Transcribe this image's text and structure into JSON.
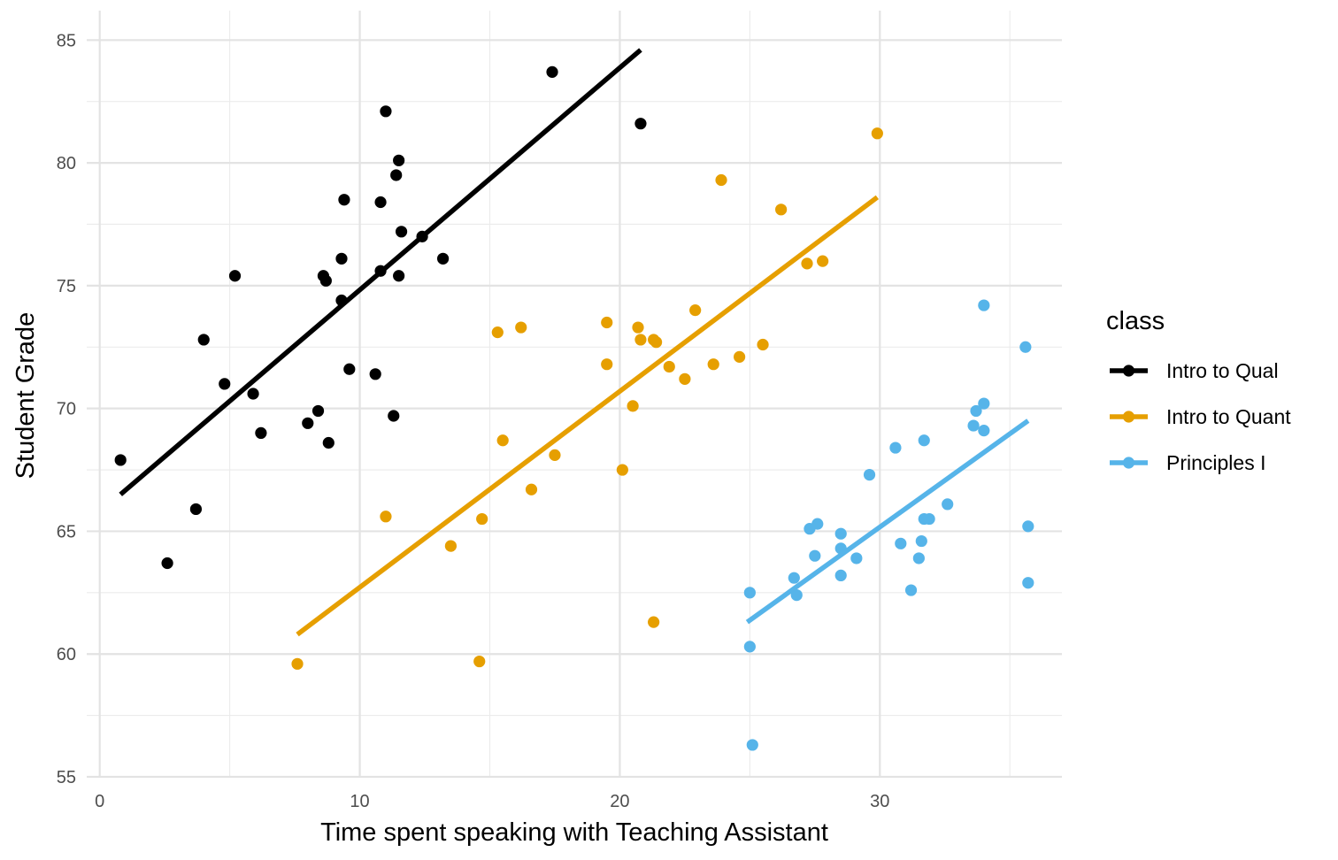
{
  "chart_data": {
    "type": "scatter",
    "title": "",
    "xlabel": "Time spent speaking with Teaching Assistant",
    "ylabel": "Student Grade",
    "xlim": [
      -0.5,
      37.0
    ],
    "ylim": [
      55,
      86.2
    ],
    "x_ticks": [
      0,
      10,
      20,
      30
    ],
    "x_tick_labels": [
      "0",
      "10",
      "20",
      "30"
    ],
    "y_ticks": [
      55,
      60,
      65,
      70,
      75,
      80,
      85
    ],
    "y_tick_labels": [
      "55",
      "60",
      "65",
      "70",
      "75",
      "80",
      "85"
    ],
    "grid": true,
    "legend": {
      "title": "class",
      "position": "right"
    },
    "series": [
      {
        "name": "Intro to Qual",
        "color": "#000000",
        "points": [
          [
            0.8,
            67.9
          ],
          [
            2.6,
            63.7
          ],
          [
            3.7,
            65.9
          ],
          [
            4.0,
            72.8
          ],
          [
            4.8,
            71.0
          ],
          [
            5.2,
            75.4
          ],
          [
            5.9,
            70.6
          ],
          [
            6.2,
            69.0
          ],
          [
            8.0,
            69.4
          ],
          [
            8.4,
            69.9
          ],
          [
            8.6,
            75.4
          ],
          [
            8.7,
            75.2
          ],
          [
            8.8,
            68.6
          ],
          [
            9.3,
            74.4
          ],
          [
            9.3,
            76.1
          ],
          [
            9.4,
            78.5
          ],
          [
            9.6,
            71.6
          ],
          [
            10.6,
            71.4
          ],
          [
            10.8,
            78.4
          ],
          [
            10.8,
            75.6
          ],
          [
            11.0,
            82.1
          ],
          [
            11.3,
            69.7
          ],
          [
            11.4,
            79.5
          ],
          [
            11.5,
            80.1
          ],
          [
            11.5,
            75.4
          ],
          [
            11.6,
            77.2
          ],
          [
            12.4,
            77.0
          ],
          [
            13.2,
            76.1
          ],
          [
            17.4,
            83.7
          ],
          [
            20.8,
            81.6
          ]
        ],
        "fit": [
          [
            0.8,
            66.5
          ],
          [
            20.8,
            84.6
          ]
        ]
      },
      {
        "name": "Intro to Quant",
        "color": "#E69F00",
        "points": [
          [
            7.6,
            59.6
          ],
          [
            11.0,
            65.6
          ],
          [
            13.5,
            64.4
          ],
          [
            14.6,
            59.7
          ],
          [
            14.7,
            65.5
          ],
          [
            15.3,
            73.1
          ],
          [
            15.5,
            68.7
          ],
          [
            16.2,
            73.3
          ],
          [
            16.6,
            66.7
          ],
          [
            17.5,
            68.1
          ],
          [
            19.5,
            73.5
          ],
          [
            19.5,
            71.8
          ],
          [
            20.1,
            67.5
          ],
          [
            20.5,
            70.1
          ],
          [
            20.7,
            73.3
          ],
          [
            20.8,
            72.8
          ],
          [
            21.3,
            72.8
          ],
          [
            21.4,
            72.7
          ],
          [
            21.3,
            61.3
          ],
          [
            21.9,
            71.7
          ],
          [
            22.5,
            71.2
          ],
          [
            22.9,
            74.0
          ],
          [
            23.6,
            71.8
          ],
          [
            23.9,
            79.3
          ],
          [
            24.6,
            72.1
          ],
          [
            25.5,
            72.6
          ],
          [
            26.2,
            78.1
          ],
          [
            27.2,
            75.9
          ],
          [
            27.8,
            76.0
          ],
          [
            29.9,
            81.2
          ]
        ],
        "fit": [
          [
            7.6,
            60.8
          ],
          [
            29.9,
            78.6
          ]
        ]
      },
      {
        "name": "Principles I",
        "color": "#56B4E9",
        "points": [
          [
            25.0,
            62.5
          ],
          [
            25.0,
            60.3
          ],
          [
            25.1,
            56.3
          ],
          [
            26.7,
            63.1
          ],
          [
            26.8,
            62.4
          ],
          [
            27.3,
            65.1
          ],
          [
            27.5,
            64.0
          ],
          [
            27.6,
            65.3
          ],
          [
            28.5,
            64.9
          ],
          [
            28.5,
            64.3
          ],
          [
            28.5,
            63.2
          ],
          [
            29.1,
            63.9
          ],
          [
            29.6,
            67.3
          ],
          [
            30.6,
            68.4
          ],
          [
            30.8,
            64.5
          ],
          [
            31.2,
            62.6
          ],
          [
            31.5,
            63.9
          ],
          [
            31.6,
            64.6
          ],
          [
            31.7,
            65.5
          ],
          [
            31.7,
            68.7
          ],
          [
            31.9,
            65.5
          ],
          [
            32.6,
            66.1
          ],
          [
            33.6,
            69.3
          ],
          [
            33.7,
            69.9
          ],
          [
            34.0,
            74.2
          ],
          [
            34.0,
            70.2
          ],
          [
            34.0,
            69.1
          ],
          [
            35.6,
            72.5
          ],
          [
            35.7,
            65.2
          ],
          [
            35.7,
            62.9
          ]
        ],
        "fit": [
          [
            24.9,
            61.3
          ],
          [
            35.7,
            69.5
          ]
        ]
      }
    ]
  }
}
